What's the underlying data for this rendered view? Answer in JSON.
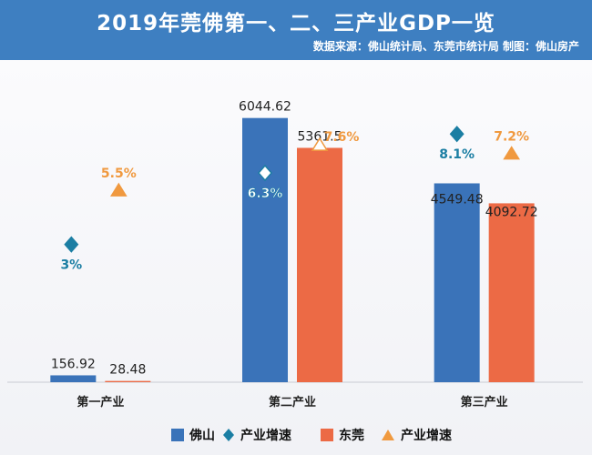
{
  "header": {
    "title": "2019年莞佛第一、二、三产业GDP一览",
    "source": "数据来源：佛山统计局、东莞市统计局  制图：佛山房产"
  },
  "colors": {
    "foshan": "#3a73b9",
    "dongguan": "#ec6a45",
    "foshan_growth": "#1b7ea3",
    "dongguan_growth": "#f0993f",
    "label_dark": "#222222",
    "header_bg": "#3e7fc1"
  },
  "legend": {
    "foshan": "佛山",
    "foshan_growth": "产业增速",
    "dongguan": "东莞",
    "dongguan_growth": "产业增速"
  },
  "chart_data": {
    "type": "bar",
    "title": "2019年莞佛第一、二、三产业GDP一览",
    "categories": [
      "第一产业",
      "第二产业",
      "第三产业"
    ],
    "series": [
      {
        "name": "佛山",
        "values": [
          156.92,
          6044.62,
          4549.48
        ],
        "value_labels": [
          "156.92",
          "6044.62",
          "4549.48"
        ]
      },
      {
        "name": "东莞",
        "values": [
          28.48,
          5361.5,
          4092.72
        ],
        "value_labels": [
          "28.48",
          "5361.5",
          "4092.72"
        ]
      }
    ],
    "growth": [
      {
        "name": "佛山产业增速",
        "values": [
          3,
          6.3,
          8.1
        ],
        "labels": [
          "3%",
          "6.3%",
          "8.1%"
        ],
        "marker": "diamond"
      },
      {
        "name": "东莞产业增速",
        "values": [
          5.5,
          7.6,
          7.2
        ],
        "labels": [
          "5.5%",
          "7.6%",
          "7.2%"
        ],
        "marker": "triangle"
      }
    ],
    "ylim": [
      0,
      6600
    ],
    "growth_ylim": [
      0,
      10
    ]
  }
}
